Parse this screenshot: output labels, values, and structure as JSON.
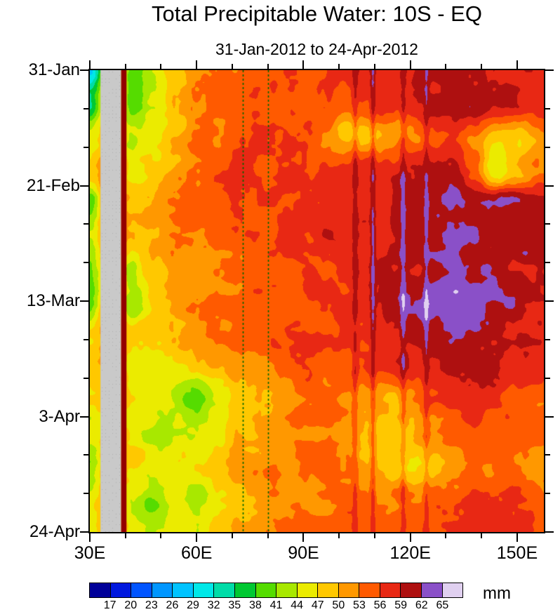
{
  "title": "Total Precipitable Water: 10S - EQ",
  "subtitle": "31-Jan-2012 to 24-Apr-2012",
  "chart_data": {
    "type": "heatmap",
    "field": "total precipitable water (mm), time-longitude Hovmoller, averaged 10S-EQ",
    "x_axis": {
      "range": [
        30,
        157.5
      ],
      "minor_step": 10,
      "ticks": [
        {
          "lon": 30,
          "label": "30E"
        },
        {
          "lon": 60,
          "label": "60E"
        },
        {
          "lon": 90,
          "label": "90E"
        },
        {
          "lon": 120,
          "label": "120E"
        },
        {
          "lon": 150,
          "label": "150E"
        }
      ]
    },
    "y_axis": {
      "range_days": [
        0,
        84
      ],
      "minor_step": 7,
      "ticks": [
        {
          "day": 0,
          "label": "31-Jan"
        },
        {
          "day": 21,
          "label": "21-Feb"
        },
        {
          "day": 42,
          "label": "13-Mar"
        },
        {
          "day": 63,
          "label": "3-Apr"
        },
        {
          "day": 84,
          "label": "24-Apr"
        }
      ]
    },
    "colorbar": {
      "unit": "mm",
      "boundaries": [
        17,
        20,
        23,
        26,
        29,
        32,
        35,
        38,
        41,
        44,
        47,
        50,
        53,
        56,
        59,
        62,
        65
      ],
      "labels": [
        "17",
        "20",
        "23",
        "26",
        "29",
        "32",
        "35",
        "38",
        "41",
        "44",
        "47",
        "50",
        "53",
        "56",
        "59",
        "62",
        "65"
      ],
      "colors": [
        "#000099",
        "#0018DE",
        "#0054FF",
        "#0096FF",
        "#00C3FF",
        "#00E8E8",
        "#00DCA8",
        "#00C832",
        "#55DC00",
        "#A8E800",
        "#EBEB00",
        "#FFC800",
        "#FF9800",
        "#FF5A00",
        "#E82814",
        "#AE1010",
        "#8A50C8",
        "#E0D0F0"
      ]
    },
    "land_mask": {
      "lon_min": 33,
      "lon_max": 38.8,
      "color": "#C9C9C9"
    },
    "coast_strip": {
      "lon_min": 38.8,
      "lon_max": 40.3,
      "color": "#930000"
    },
    "reference_lines": {
      "lons": [
        73,
        80
      ],
      "color": "#006600",
      "style": "dashed"
    },
    "streaks": [
      {
        "lon": 104.5,
        "amp": 3.5,
        "width": 0.8
      },
      {
        "lon": 109.5,
        "amp": 4.5,
        "width": 0.7
      },
      {
        "lon": 118.0,
        "amp": 3.5,
        "width": 0.8
      },
      {
        "lon": 124.5,
        "amp": 3.0,
        "width": 0.7
      }
    ],
    "grid": {
      "lons": [
        30,
        36,
        42,
        48,
        54,
        60,
        66,
        72,
        78,
        84,
        90,
        96,
        102,
        108,
        114,
        120,
        126,
        132,
        138,
        144,
        150,
        156
      ],
      "days": [
        0,
        6,
        12,
        18,
        24,
        30,
        36,
        42,
        48,
        54,
        60,
        66,
        72,
        78,
        84
      ],
      "values": [
        [
          29,
          50,
          39,
          43,
          48,
          52,
          53,
          54,
          55,
          56,
          56,
          56,
          57,
          57,
          58,
          58,
          59,
          60,
          60,
          59,
          58,
          57
        ],
        [
          36,
          52,
          38,
          44,
          49,
          52,
          53,
          54,
          55,
          55,
          55,
          55,
          56,
          57,
          58,
          58,
          59,
          60,
          61,
          60,
          59,
          58
        ],
        [
          45,
          52,
          44,
          47,
          50,
          53,
          54,
          55,
          56,
          56,
          55,
          53,
          48,
          48,
          50,
          52,
          55,
          56,
          53,
          48,
          48,
          52
        ],
        [
          48,
          54,
          46,
          48,
          51,
          54,
          55,
          56,
          56,
          57,
          57,
          56,
          56,
          57,
          58,
          59,
          60,
          61,
          55,
          45,
          49,
          53
        ],
        [
          40,
          55,
          49,
          50,
          52,
          54,
          55,
          55,
          56,
          56,
          57,
          57,
          57,
          58,
          59,
          60,
          61,
          62,
          62,
          62,
          61,
          60
        ],
        [
          45,
          55,
          50,
          50,
          53,
          54,
          55,
          56,
          56,
          57,
          57,
          58,
          58,
          58,
          59,
          60,
          60,
          62,
          62,
          61,
          61,
          60
        ],
        [
          42,
          52,
          43,
          48,
          52,
          52,
          53,
          54,
          55,
          55,
          56,
          56,
          57,
          58,
          59,
          60,
          61,
          62,
          62,
          61,
          60,
          59
        ],
        [
          40,
          54,
          42,
          48,
          50,
          52,
          53,
          54,
          55,
          56,
          56,
          57,
          57,
          58,
          60,
          62,
          63,
          64,
          63,
          62,
          61,
          60
        ],
        [
          46,
          54,
          47,
          48,
          50,
          52,
          53,
          54,
          55,
          55,
          56,
          56,
          56,
          57,
          58,
          60,
          61,
          62,
          61,
          60,
          59,
          58
        ],
        [
          48,
          52,
          46,
          46,
          47,
          48,
          50,
          52,
          53,
          54,
          55,
          55,
          55,
          56,
          57,
          58,
          59,
          60,
          60,
          59,
          58,
          57
        ],
        [
          46,
          50,
          46,
          45,
          44,
          39,
          45,
          48,
          50,
          52,
          54,
          54,
          53,
          52,
          50,
          52,
          55,
          57,
          57,
          56,
          55,
          54
        ],
        [
          44,
          50,
          45,
          44,
          44,
          43,
          46,
          49,
          51,
          52,
          53,
          53,
          52,
          49,
          47,
          49,
          52,
          54,
          55,
          55,
          54,
          53
        ],
        [
          42,
          52,
          48,
          46,
          46,
          47,
          49,
          51,
          52,
          53,
          54,
          54,
          53,
          50,
          48,
          47,
          49,
          51,
          53,
          54,
          53,
          52
        ],
        [
          45,
          53,
          44,
          40,
          45,
          42,
          46,
          49,
          51,
          52,
          53,
          53,
          54,
          53,
          53,
          54,
          55,
          56,
          56,
          56,
          55,
          54
        ],
        [
          46,
          52,
          45,
          44,
          45,
          46,
          48,
          50,
          52,
          53,
          54,
          54,
          55,
          55,
          55,
          56,
          56,
          57,
          57,
          57,
          56,
          55
        ]
      ]
    }
  }
}
